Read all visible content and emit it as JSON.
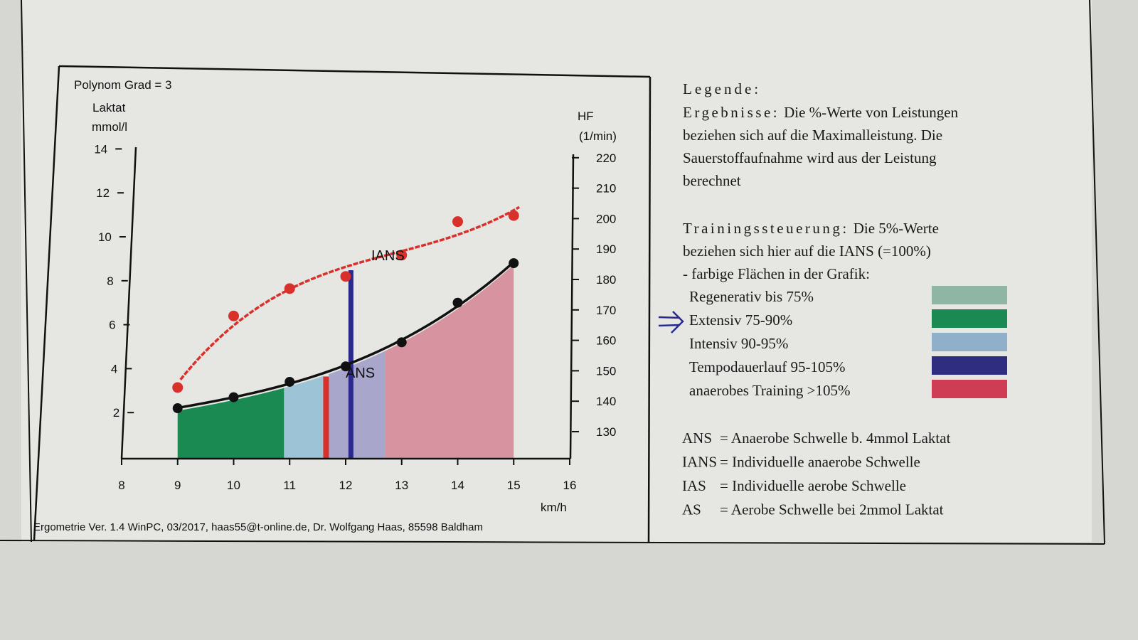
{
  "chart_data": {
    "type": "line",
    "title": "Polynom Grad = 3",
    "xlabel": "km/h",
    "xlim": [
      8,
      16
    ],
    "x_ticks": [
      "8",
      "9",
      "10",
      "11",
      "12",
      "13",
      "14",
      "15",
      "16"
    ],
    "y_left": {
      "label_line1": "Laktat",
      "label_line2": "mmol/l",
      "ylim": [
        0,
        14
      ],
      "ticks": [
        "2",
        "4",
        "6",
        "8",
        "10",
        "12",
        "14"
      ]
    },
    "y_right": {
      "label_line1": "HF",
      "label_line2": "(1/min)",
      "ylim": [
        130,
        220
      ],
      "ticks": [
        "130",
        "140",
        "150",
        "160",
        "170",
        "180",
        "190",
        "200",
        "210",
        "220"
      ]
    },
    "x": [
      9,
      10,
      11,
      12,
      13,
      14,
      15
    ],
    "series": [
      {
        "name": "Laktat",
        "axis": "left",
        "color": "#111111",
        "values": [
          2.2,
          2.7,
          3.4,
          4.1,
          5.2,
          7.0,
          8.8
        ]
      },
      {
        "name": "HF",
        "axis": "right",
        "color": "#d8302a",
        "values": [
          144.5,
          168,
          177,
          181,
          188,
          199,
          201
        ]
      }
    ],
    "zones": [
      {
        "name": "Extensiv",
        "from": 9.0,
        "to": 10.9,
        "color": "#1a8a52"
      },
      {
        "name": "Intensiv",
        "from": 10.9,
        "to": 11.6,
        "color": "#9cc3d6"
      },
      {
        "name": "Tempodauerlauf",
        "from": 11.7,
        "to": 12.7,
        "color": "#a9a6cc"
      },
      {
        "name": "anaerobes Training",
        "from": 12.7,
        "to": 15.0,
        "color": "#d7939f"
      }
    ],
    "markers": [
      {
        "label": "IANS",
        "x": 12.1,
        "color": "#2a2a8c"
      },
      {
        "label": "ANS",
        "x": 11.65,
        "color": "#d8302a"
      }
    ]
  },
  "footer": "Ergometrie Ver. 1.4 WinPC, 03/2017, haas55@t-online.de, Dr. Wolfgang Haas, 85598 Baldham",
  "legend": {
    "title": "Legende:",
    "results_heading": "Ergebnisse:",
    "results_lines": [
      "Die %-Werte von Leistungen",
      "beziehen sich auf die Maximalleistung. Die",
      "Sauerstoffaufnahme wird aus der Leistung",
      "berechnet"
    ],
    "training_heading": "Trainingssteuerung:",
    "training_lines": [
      "Die 5%-Werte",
      "beziehen sich hier auf die IANS (=100%)",
      "- farbige Flächen in der Grafik:"
    ],
    "zones": [
      {
        "label": "Regenerativ bis 75%",
        "color": "#8fb5a5"
      },
      {
        "label": "Extensiv 75-90%",
        "color": "#1a8a52"
      },
      {
        "label": "Intensiv 90-95%",
        "color": "#8fb0c8"
      },
      {
        "label": "Tempodauerlauf 95-105%",
        "color": "#2e2d80"
      },
      {
        "label": "anaerobes Training >105%",
        "color": "#cf3d55"
      }
    ],
    "abbreviations": [
      {
        "abbr": "ANS",
        "text": "= Anaerobe Schwelle b. 4mmol Laktat"
      },
      {
        "abbr": "IANS",
        "text": "= Individuelle anaerobe Schwelle"
      },
      {
        "abbr": "IAS",
        "text": "= Individuelle aerobe Schwelle"
      },
      {
        "abbr": "AS",
        "text": "= Aerobe Schwelle bei 2mmol Laktat"
      }
    ]
  }
}
